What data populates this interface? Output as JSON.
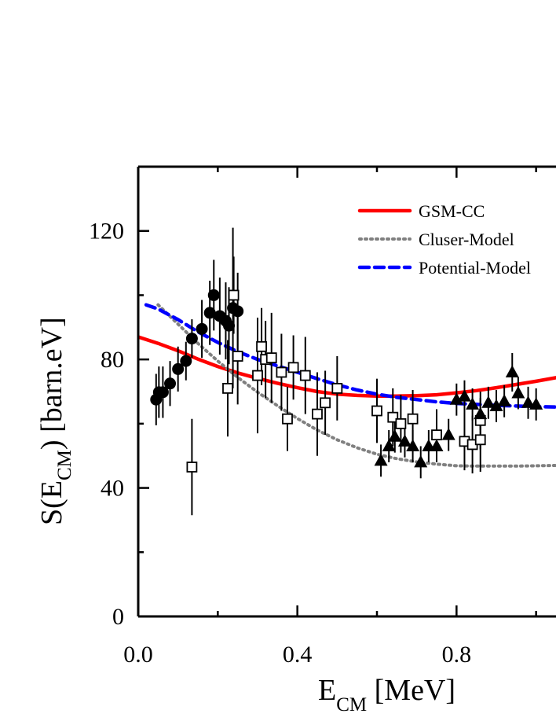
{
  "chart_data": {
    "type": "scatter",
    "xlabel": {
      "main": "E",
      "sub": "CM",
      "rest": " [MeV]"
    },
    "ylabel": {
      "pre": "S(E",
      "sub": "CM",
      "post": ") [barn.eV]"
    },
    "xlim": [
      0.0,
      1.05
    ],
    "ylim": [
      0,
      140
    ],
    "xticks": [
      0.0,
      0.4,
      0.8
    ],
    "xtick_labels": [
      "0.0",
      "0.4",
      "0.8"
    ],
    "yticks": [
      0,
      40,
      80,
      120
    ],
    "ytick_labels": [
      "0",
      "40",
      "80",
      "120"
    ],
    "grid": false,
    "legend_position": "top-right",
    "legend": [
      {
        "label": "GSM-CC",
        "color": "#ff0000",
        "style": "solid"
      },
      {
        "label": "Cluser-Model",
        "color": "#808080",
        "style": "dotted"
      },
      {
        "label": "Potential-Model",
        "color": "#0000ff",
        "style": "dashed"
      }
    ],
    "curves": [
      {
        "label": "GSM-CC",
        "x": [
          0.0,
          0.05,
          0.1,
          0.15,
          0.2,
          0.25,
          0.3,
          0.35,
          0.4,
          0.45,
          0.5,
          0.55,
          0.6,
          0.65,
          0.7,
          0.75,
          0.8,
          0.85,
          0.9,
          0.95,
          1.0,
          1.05
        ],
        "y": [
          87,
          85,
          82.7,
          80.1,
          77.8,
          75.8,
          74.1,
          72.6,
          71.2,
          70.0,
          69.2,
          68.8,
          68.6,
          68.6,
          68.7,
          69.0,
          69.6,
          70.3,
          71.2,
          72.2,
          73.2,
          74.3
        ]
      },
      {
        "label": "Cluser-Model",
        "x": [
          0.05,
          0.1,
          0.15,
          0.2,
          0.25,
          0.3,
          0.35,
          0.4,
          0.45,
          0.5,
          0.55,
          0.6,
          0.65,
          0.7,
          0.75,
          0.8,
          0.85,
          0.9,
          0.95,
          1.0,
          1.05
        ],
        "y": [
          97,
          91,
          85,
          79.5,
          74.4,
          69.8,
          65.6,
          61.6,
          58,
          55,
          52.5,
          50.5,
          49.1,
          48.1,
          47.4,
          46.9,
          46.8,
          46.8,
          46.8,
          46.9,
          47
        ]
      },
      {
        "label": "Potential-Model",
        "x": [
          0.02,
          0.05,
          0.1,
          0.15,
          0.2,
          0.25,
          0.3,
          0.35,
          0.4,
          0.45,
          0.5,
          0.55,
          0.6,
          0.65,
          0.7,
          0.75,
          0.8,
          0.85,
          0.9,
          0.95,
          1.0,
          1.05
        ],
        "y": [
          97,
          95.7,
          92.4,
          88.6,
          85.3,
          82.4,
          80.0,
          78.0,
          76.0,
          74.0,
          72.1,
          70.5,
          69.2,
          68.2,
          67.5,
          66.8,
          66.3,
          66.0,
          65.7,
          65.5,
          65.3,
          65.2
        ]
      }
    ],
    "series": [
      {
        "marker": "filled-circle",
        "points": [
          {
            "x": 0.045,
            "y": 67.5,
            "err": 8
          },
          {
            "x": 0.052,
            "y": 69.8,
            "err": 8
          },
          {
            "x": 0.062,
            "y": 69.8,
            "err": 8
          },
          {
            "x": 0.08,
            "y": 72.5,
            "err": 7
          },
          {
            "x": 0.1,
            "y": 77,
            "err": 7
          },
          {
            "x": 0.12,
            "y": 79.5,
            "err": 6
          },
          {
            "x": 0.135,
            "y": 86.5,
            "err": 6
          },
          {
            "x": 0.16,
            "y": 89.5,
            "err": 9
          },
          {
            "x": 0.18,
            "y": 94.5,
            "err": 10
          },
          {
            "x": 0.19,
            "y": 100,
            "err": 11
          },
          {
            "x": 0.205,
            "y": 93.5,
            "err": 12
          },
          {
            "x": 0.22,
            "y": 92,
            "err": 12
          },
          {
            "x": 0.228,
            "y": 90.5,
            "err": 12
          },
          {
            "x": 0.238,
            "y": 96,
            "err": 25
          },
          {
            "x": 0.25,
            "y": 95,
            "err": 12
          }
        ]
      },
      {
        "marker": "open-square",
        "points": [
          {
            "x": 0.135,
            "y": 46.5,
            "err": 15
          },
          {
            "x": 0.225,
            "y": 71,
            "err": 15
          },
          {
            "x": 0.24,
            "y": 100,
            "err": 12
          },
          {
            "x": 0.25,
            "y": 81,
            "err": 15
          },
          {
            "x": 0.3,
            "y": 75,
            "err": 18
          },
          {
            "x": 0.31,
            "y": 84,
            "err": 12
          },
          {
            "x": 0.32,
            "y": 80,
            "err": 12
          },
          {
            "x": 0.335,
            "y": 80.5,
            "err": 14
          },
          {
            "x": 0.36,
            "y": 76,
            "err": 12
          },
          {
            "x": 0.375,
            "y": 61.5,
            "err": 10
          },
          {
            "x": 0.39,
            "y": 77.5,
            "err": 10
          },
          {
            "x": 0.42,
            "y": 75,
            "err": 12
          },
          {
            "x": 0.45,
            "y": 63,
            "err": 13
          },
          {
            "x": 0.47,
            "y": 66.5,
            "err": 10
          },
          {
            "x": 0.5,
            "y": 71,
            "err": 10
          },
          {
            "x": 0.6,
            "y": 64,
            "err": 10
          },
          {
            "x": 0.64,
            "y": 62,
            "err": 9
          },
          {
            "x": 0.66,
            "y": 60,
            "err": 9
          },
          {
            "x": 0.69,
            "y": 61.5,
            "err": 9
          },
          {
            "x": 0.75,
            "y": 56.5,
            "err": 8
          },
          {
            "x": 0.82,
            "y": 54.5,
            "err": 9
          },
          {
            "x": 0.84,
            "y": 53.5,
            "err": 9
          },
          {
            "x": 0.86,
            "y": 55,
            "err": 10
          },
          {
            "x": 0.86,
            "y": 61,
            "err": 9
          }
        ]
      },
      {
        "marker": "filled-triangle",
        "points": [
          {
            "x": 0.61,
            "y": 48.5,
            "err": 5
          },
          {
            "x": 0.63,
            "y": 53,
            "err": 5
          },
          {
            "x": 0.645,
            "y": 56,
            "err": 5
          },
          {
            "x": 0.67,
            "y": 54.5,
            "err": 5
          },
          {
            "x": 0.69,
            "y": 53,
            "err": 5
          },
          {
            "x": 0.71,
            "y": 48,
            "err": 5
          },
          {
            "x": 0.73,
            "y": 53,
            "err": 5
          },
          {
            "x": 0.75,
            "y": 53,
            "err": 5
          },
          {
            "x": 0.78,
            "y": 56.5,
            "err": 5
          },
          {
            "x": 0.8,
            "y": 67.5,
            "err": 5
          },
          {
            "x": 0.82,
            "y": 68.5,
            "err": 5
          },
          {
            "x": 0.84,
            "y": 66,
            "err": 5
          },
          {
            "x": 0.86,
            "y": 63,
            "err": 5
          },
          {
            "x": 0.88,
            "y": 66.5,
            "err": 5
          },
          {
            "x": 0.9,
            "y": 65.5,
            "err": 5
          },
          {
            "x": 0.92,
            "y": 67,
            "err": 5
          },
          {
            "x": 0.94,
            "y": 76,
            "err": 6
          },
          {
            "x": 0.955,
            "y": 69.5,
            "err": 5
          },
          {
            "x": 0.98,
            "y": 66.5,
            "err": 5
          },
          {
            "x": 1.0,
            "y": 66,
            "err": 5
          }
        ]
      }
    ]
  }
}
